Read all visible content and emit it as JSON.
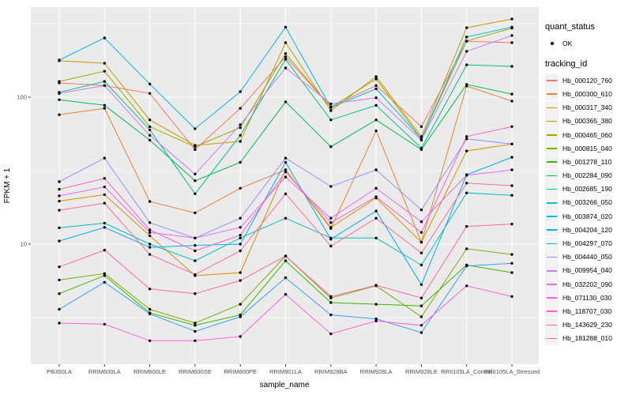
{
  "chart_data": {
    "type": "line",
    "xlabel": "sample_name",
    "ylabel": "FPKM + 1",
    "y_scale": "log10",
    "ylim": [
      1.5,
      410
    ],
    "grid": "on",
    "legend_position": "right",
    "y_ticks": [
      {
        "label": "100",
        "value": 100
      },
      {
        "label": "10",
        "value": 10
      }
    ],
    "y_minor_ticks": [
      3.162,
      31.62,
      316.2
    ],
    "categories": [
      "PB350LA",
      "RRIM600LA",
      "RRIM600LE",
      "RRIM600SE",
      "RRIM600PE",
      "RRIM901LA",
      "RRIM928BA",
      "RRIM928LA",
      "RRIM928LE",
      "RRII105LA_Control",
      "RRII105LA_Stressed"
    ],
    "legend": {
      "quant_status_title": "quant_status",
      "ok_label": "OK",
      "tracking_title": "tracking_id"
    },
    "colors": {
      "panel_bg": "#ebebeb",
      "grid": "#ffffff",
      "point": "#000000",
      "tick_text": "#4d4d4d"
    },
    "series": [
      {
        "name": "Hb_000120_760",
        "color": "#F8766D",
        "values": [
          125,
          120,
          106,
          44,
          84,
          188,
          86,
          120,
          63,
          240,
          235
        ]
      },
      {
        "name": "Hb_000300_610",
        "color": "#EA8331",
        "values": [
          76,
          84,
          19.5,
          16.3,
          24,
          32,
          12.8,
          59,
          10.3,
          119,
          94
        ]
      },
      {
        "name": "Hb_000317_340",
        "color": "#D89000",
        "values": [
          19.6,
          21.7,
          11.4,
          6.1,
          6.4,
          32,
          13,
          20.6,
          10.3,
          43,
          48
        ]
      },
      {
        "name": "Hb_000365_380",
        "color": "#C09B00",
        "values": [
          177,
          170,
          70,
          47,
          50,
          235,
          81,
          138,
          54,
          297,
          340
        ]
      },
      {
        "name": "Hb_000465_060",
        "color": "#A3A500",
        "values": [
          128,
          150,
          63,
          46,
          62,
          198,
          85,
          133,
          52,
          241,
          295
        ]
      },
      {
        "name": "Hb_000815_040",
        "color": "#7CAE00",
        "values": [
          5.7,
          6.3,
          3.6,
          2.9,
          3.9,
          8.3,
          4.3,
          5.2,
          3.2,
          9.3,
          8.5
        ]
      },
      {
        "name": "Hb_001278_110",
        "color": "#39B600",
        "values": [
          4.6,
          6.1,
          3.4,
          2.8,
          3.3,
          7.7,
          4.0,
          3.9,
          3.8,
          7.2,
          6.4
        ]
      },
      {
        "name": "Hb_002284_090",
        "color": "#00BB4E",
        "values": [
          96,
          88,
          51,
          27,
          36,
          93,
          46,
          70,
          44,
          122,
          105
        ]
      },
      {
        "name": "Hb_002685_190",
        "color": "#00C087",
        "values": [
          108,
          128,
          60,
          22,
          55,
          181,
          70,
          88,
          45,
          166,
          162
        ]
      },
      {
        "name": "Hb_003266_050",
        "color": "#00C0B8",
        "values": [
          12.9,
          13.9,
          10,
          7.7,
          11,
          15,
          11,
          11,
          7.2,
          22.3,
          21.5
        ]
      },
      {
        "name": "Hb_003874_020",
        "color": "#00BAE0",
        "values": [
          179,
          253,
          123,
          61,
          109,
          300,
          85,
          114,
          52,
          257,
          300
        ]
      },
      {
        "name": "Hb_004204_120",
        "color": "#00ACFC",
        "values": [
          10.5,
          13,
          9.5,
          9.8,
          10,
          36,
          10.8,
          16.8,
          5.3,
          29.7,
          39
        ]
      },
      {
        "name": "Hb_004297_070",
        "color": "#35A2FF",
        "values": [
          3.6,
          5.5,
          3.35,
          2.55,
          3.2,
          5.9,
          3.3,
          3.1,
          2.5,
          7.1,
          7.4
        ]
      },
      {
        "name": "Hb_004440_050",
        "color": "#9590FF",
        "values": [
          26.6,
          38.5,
          14,
          11,
          15,
          38.5,
          24.7,
          32,
          17.1,
          52,
          48
        ]
      },
      {
        "name": "Hb_009954_040",
        "color": "#C77CFF",
        "values": [
          106,
          120,
          55,
          30,
          65,
          158,
          90,
          99,
          51,
          205,
          263
        ]
      },
      {
        "name": "Hb_032202_090",
        "color": "#E76BF3",
        "values": [
          21.3,
          24.5,
          12,
          11,
          13,
          28.6,
          15,
          24,
          14.2,
          29.4,
          32
        ]
      },
      {
        "name": "Hb_071130_030",
        "color": "#FA62DB",
        "values": [
          2.9,
          2.85,
          2.2,
          2.2,
          2.35,
          4.55,
          2.45,
          3.0,
          2.8,
          5.2,
          4.4
        ]
      },
      {
        "name": "Hb_118707_030",
        "color": "#FF61C9",
        "values": [
          23.6,
          28,
          12.5,
          9.0,
          11.5,
          31,
          14,
          21,
          12,
          54,
          63
        ]
      },
      {
        "name": "Hb_143629_230",
        "color": "#FF67A4",
        "values": [
          7.0,
          9.1,
          4.95,
          4.6,
          5.65,
          8.3,
          4.4,
          5.25,
          4.3,
          13.2,
          13.7
        ]
      },
      {
        "name": "Hb_181288_010",
        "color": "#FF6C92",
        "values": [
          17,
          19,
          8.5,
          6.2,
          9,
          22,
          9.7,
          15,
          8.7,
          26,
          25
        ]
      }
    ]
  }
}
